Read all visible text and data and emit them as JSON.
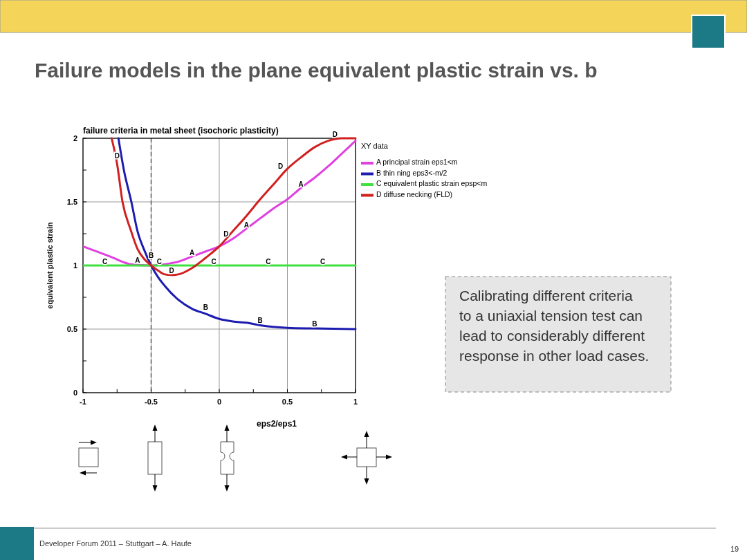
{
  "chart_data": {
    "type": "line",
    "title": "Failure models in the plane equivalent plastic strain vs. b",
    "subtitle": "failure criteria in metal sheet (isochoric plasticity)",
    "xlabel": "eps2/eps1",
    "ylabel": "equivalent plastic strain",
    "legend_title": "XY data",
    "legend": "right",
    "grid": true,
    "marker": "none",
    "line_style": "solid",
    "xlim": [
      -1,
      1
    ],
    "ylim": [
      0,
      2
    ],
    "xticks": [
      -1,
      -0.5,
      0,
      0.5,
      1
    ],
    "yticks": [
      0,
      0.5,
      1,
      1.5,
      2
    ],
    "ref_lines": [
      {
        "axis": "x",
        "value": -0.5,
        "line_style": "dashed",
        "color": "#555555"
      }
    ],
    "series": [
      {
        "name": "A principal strain eps1<m",
        "color": "#e040e0",
        "x": [
          -1,
          -0.8,
          -0.65,
          -0.5,
          -0.4,
          -0.3,
          -0.2,
          -0.1,
          0,
          0.1,
          0.2,
          0.3,
          0.4,
          0.5,
          0.6,
          0.7,
          0.8,
          0.9,
          1
        ],
        "values": [
          1.15,
          1.07,
          1.01,
          1.0,
          1.01,
          1.03,
          1.07,
          1.11,
          1.15,
          1.21,
          1.29,
          1.37,
          1.45,
          1.52,
          1.61,
          1.69,
          1.78,
          1.88,
          1.98
        ]
      },
      {
        "name": "B thin ning eps3<-m/2",
        "color": "#1c1cb0",
        "x": [
          -0.74,
          -0.7,
          -0.645,
          -0.6,
          -0.55,
          -0.5,
          -0.45,
          -0.4,
          -0.3,
          -0.2,
          -0.1,
          0,
          0.1,
          0.2,
          0.3,
          0.5,
          0.7,
          1
        ],
        "values": [
          2,
          1.75,
          1.5,
          1.27,
          1.12,
          1.0,
          0.91,
          0.84,
          0.73,
          0.66,
          0.62,
          0.58,
          0.56,
          0.55,
          0.53,
          0.51,
          0.505,
          0.5
        ]
      },
      {
        "name": "C equivalent plastic strain epsp<m",
        "color": "#40e040",
        "x": [
          -1,
          1
        ],
        "values": [
          1,
          1
        ]
      },
      {
        "name": "D diffuse necking (FLD)",
        "color": "#d02020",
        "x": [
          -0.79,
          -0.75,
          -0.71,
          -0.65,
          -0.6,
          -0.55,
          -0.5,
          -0.45,
          -0.4,
          -0.35,
          -0.3,
          -0.2,
          -0.1,
          0,
          0.1,
          0.2,
          0.3,
          0.4,
          0.5,
          0.6,
          0.7,
          0.8,
          0.9,
          1
        ],
        "values": [
          2,
          1.8,
          1.5,
          1.28,
          1.13,
          1.05,
          1.0,
          0.96,
          0.93,
          0.925,
          0.93,
          0.98,
          1.06,
          1.15,
          1.27,
          1.39,
          1.52,
          1.64,
          1.76,
          1.85,
          1.93,
          1.98,
          2.0,
          2.0
        ]
      }
    ],
    "annotations": [
      {
        "text": "A",
        "x": -0.6,
        "y": 1.01
      },
      {
        "text": "A",
        "x": -0.2,
        "y": 1.07
      },
      {
        "text": "A",
        "x": 0.2,
        "y": 1.29
      },
      {
        "text": "A",
        "x": 0.6,
        "y": 1.61
      },
      {
        "text": "B",
        "x": -0.5,
        "y": 1.05
      },
      {
        "text": "B",
        "x": -0.1,
        "y": 0.64
      },
      {
        "text": "B",
        "x": 0.3,
        "y": 0.54
      },
      {
        "text": "B",
        "x": 0.7,
        "y": 0.51
      },
      {
        "text": "C",
        "x": -0.84,
        "y": 1
      },
      {
        "text": "C",
        "x": -0.44,
        "y": 1
      },
      {
        "text": "C",
        "x": -0.04,
        "y": 1
      },
      {
        "text": "C",
        "x": 0.36,
        "y": 1
      },
      {
        "text": "C",
        "x": 0.76,
        "y": 1
      },
      {
        "text": "D",
        "x": -0.75,
        "y": 1.83
      },
      {
        "text": "D",
        "x": -0.35,
        "y": 0.93
      },
      {
        "text": "D",
        "x": 0.05,
        "y": 1.22
      },
      {
        "text": "D",
        "x": 0.45,
        "y": 1.75
      },
      {
        "text": "D",
        "x": 0.85,
        "y": 2
      },
      "Calibrating different criteria to a uniaxial tension test can lead to considerably different response in other load cases.",
      "Developer Forum 2011 – Stuttgart – A. Haufe",
      "19"
    ]
  }
}
